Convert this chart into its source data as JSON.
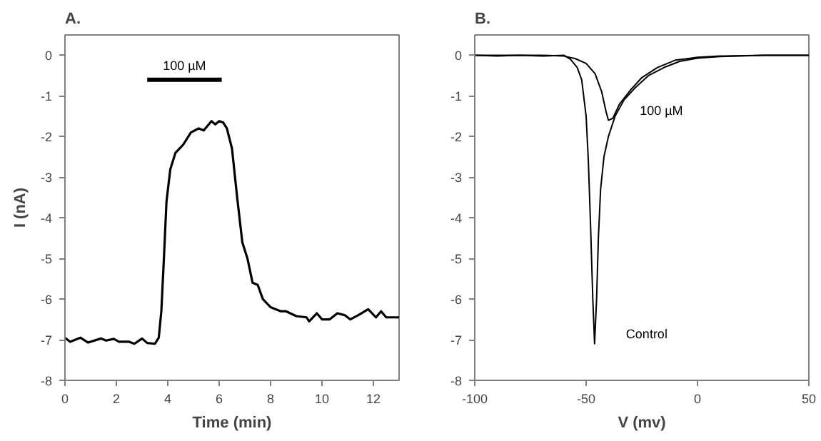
{
  "chart_data": [
    {
      "type": "line",
      "title": "A.",
      "xlabel": "Time (min)",
      "ylabel": "I (nA)",
      "xlim": [
        0,
        13
      ],
      "xticks": [
        0,
        2,
        4,
        6,
        8,
        10,
        12
      ],
      "ylim": [
        -8,
        0.5
      ],
      "yticks": [
        0,
        -1,
        -2,
        -3,
        -4,
        -5,
        -6,
        -7,
        -8
      ],
      "grid": false,
      "legend": false,
      "series": [
        {
          "name": "100 µM",
          "color": "#000000",
          "x": [
            3.2,
            6.1
          ],
          "values": [
            -0.6,
            -0.6
          ]
        },
        {
          "color": "#000000",
          "x": [
            0,
            0.2,
            0.6,
            0.9,
            1.4,
            1.6,
            1.9,
            2.1,
            2.5,
            2.7,
            3.0,
            3.2,
            3.5,
            3.65,
            3.75,
            3.85,
            3.95,
            4.1,
            4.3,
            4.6,
            4.9,
            5.2,
            5.4,
            5.7,
            5.85,
            6.0,
            6.15,
            6.3,
            6.5,
            6.7,
            6.9,
            7.1,
            7.3,
            7.5,
            7.7,
            8.0,
            8.4,
            8.6,
            9.0,
            9.4,
            9.5,
            9.8,
            10.0,
            10.3,
            10.6,
            10.9,
            11.1,
            11.4,
            11.8,
            12.1,
            12.3,
            12.5,
            13
          ],
          "values": [
            -6.95,
            -7.05,
            -6.95,
            -7.07,
            -6.97,
            -7.02,
            -6.98,
            -7.05,
            -7.05,
            -7.1,
            -6.97,
            -7.08,
            -7.1,
            -6.95,
            -6.3,
            -5.0,
            -3.6,
            -2.8,
            -2.4,
            -2.2,
            -1.9,
            -1.8,
            -1.85,
            -1.62,
            -1.7,
            -1.62,
            -1.65,
            -1.8,
            -2.3,
            -3.5,
            -4.6,
            -5.0,
            -5.6,
            -5.65,
            -6.0,
            -6.2,
            -6.3,
            -6.3,
            -6.42,
            -6.45,
            -6.55,
            -6.35,
            -6.5,
            -6.5,
            -6.35,
            -6.4,
            -6.5,
            -6.4,
            -6.25,
            -6.45,
            -6.3,
            -6.45,
            -6.45
          ]
        }
      ]
    },
    {
      "type": "line",
      "title": "B.",
      "xlabel": "V (mv)",
      "xlim": [
        -100,
        50
      ],
      "xticks": [
        -100,
        -50,
        0,
        50
      ],
      "ylim": [
        -8,
        0.5
      ],
      "yticks": [
        0,
        -1,
        -2,
        -3,
        -4,
        -5,
        -6,
        -7,
        -8
      ],
      "grid": false,
      "legend": false,
      "series": [
        {
          "name": "Control",
          "color": "#000000",
          "x": [
            -100,
            -90,
            -80,
            -70,
            -60,
            -57,
            -54,
            -52,
            -50,
            -49,
            -48,
            -47,
            -46.2,
            -45.3,
            -44.5,
            -43.5,
            -42,
            -40,
            -37,
            -33,
            -28,
            -22,
            -15,
            -8,
            0,
            10,
            30,
            50
          ],
          "values": [
            0,
            -0.02,
            0,
            -0.02,
            0,
            -0.1,
            -0.3,
            -0.6,
            -1.5,
            -2.6,
            -4.2,
            -6.0,
            -7.1,
            -6.0,
            -4.5,
            -3.3,
            -2.5,
            -2.0,
            -1.5,
            -1.1,
            -0.8,
            -0.5,
            -0.3,
            -0.15,
            -0.07,
            -0.03,
            0,
            0
          ]
        },
        {
          "name": "100 µM",
          "color": "#000000",
          "x": [
            -100,
            -70,
            -60,
            -55,
            -50,
            -46,
            -43,
            -41,
            -40,
            -38,
            -35,
            -30,
            -25,
            -18,
            -10,
            -4,
            0,
            10,
            30,
            50
          ],
          "values": [
            0,
            0,
            -0.02,
            -0.08,
            -0.2,
            -0.45,
            -0.9,
            -1.4,
            -1.6,
            -1.55,
            -1.2,
            -0.85,
            -0.55,
            -0.3,
            -0.12,
            -0.08,
            -0.05,
            -0.02,
            0,
            0
          ]
        }
      ]
    }
  ]
}
